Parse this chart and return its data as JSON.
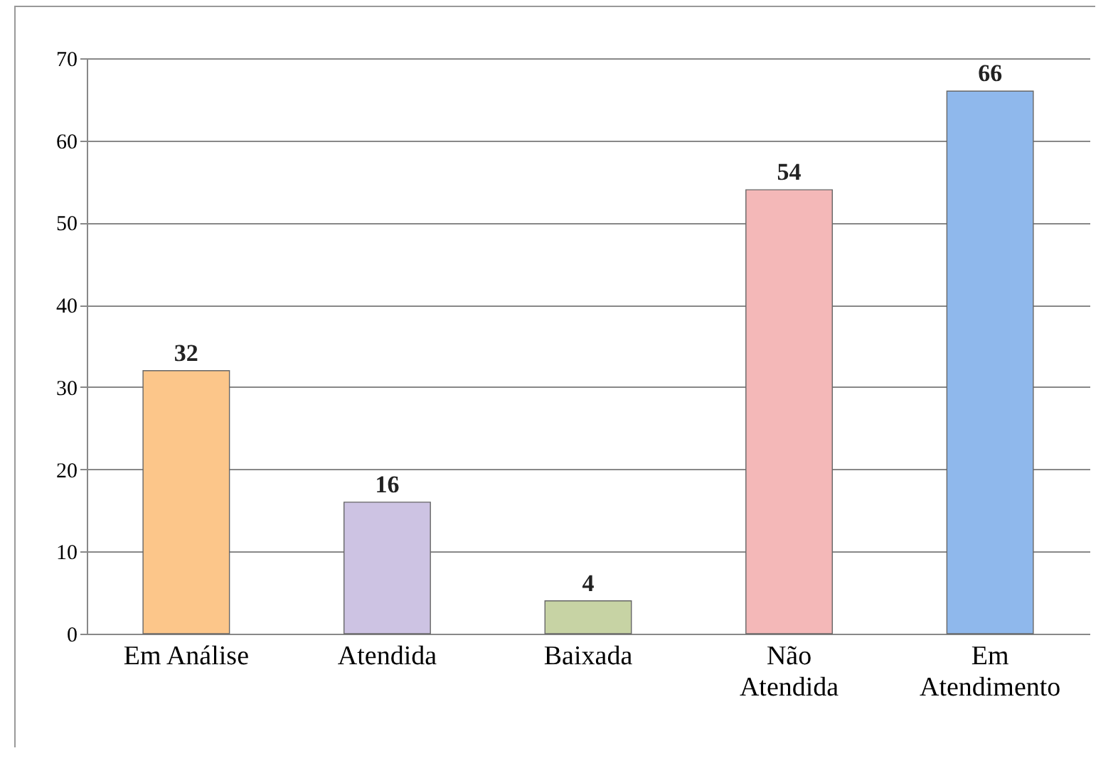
{
  "chart_data": {
    "type": "bar",
    "categories": [
      "Em Análise",
      "Atendida",
      "Baixada",
      "Não Atendida",
      "Em Atendimento"
    ],
    "values": [
      32,
      16,
      4,
      54,
      66
    ],
    "colors": [
      "#fcc68a",
      "#cdc3e3",
      "#c7d3a4",
      "#f4b8b8",
      "#8fb8ec"
    ],
    "ylim": [
      0,
      70
    ],
    "yticks": [
      0,
      10,
      20,
      30,
      40,
      50,
      60,
      70
    ],
    "grid": "y",
    "data_labels": true
  }
}
